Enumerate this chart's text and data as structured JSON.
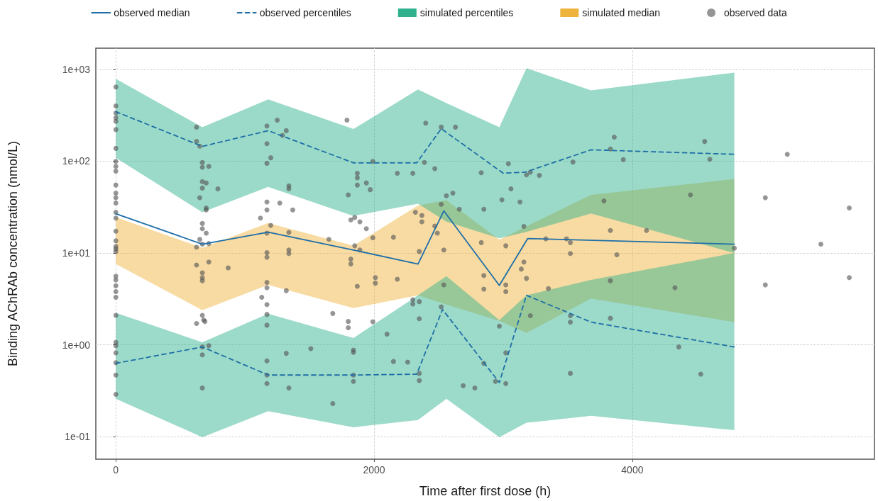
{
  "chart_data": {
    "type": "scatter",
    "xlabel": "Time after first dose (h)",
    "ylabel": "Binding AChRAb concentration (nmol/L)",
    "xlim": [
      -155,
      5875
    ],
    "xticks": [
      0,
      2000,
      4000
    ],
    "ylim": [
      0.057,
      1700
    ],
    "yticks": [
      {
        "value": 0.1,
        "label": "1e-01"
      },
      {
        "value": 1,
        "label": "1e+00"
      },
      {
        "value": 10,
        "label": "1e+01"
      },
      {
        "value": 100,
        "label": "1e+02"
      },
      {
        "value": 1000,
        "label": "1e+03"
      }
    ],
    "log": "y",
    "grid": true,
    "legend": "top",
    "series": [
      {
        "type": "line",
        "name": "observed median",
        "color": "#1f6fa8",
        "line_style": "solid",
        "marker": "none",
        "x": [
          0,
          670,
          1180,
          1840,
          2340,
          2540,
          2970,
          3190,
          4790
        ],
        "values": [
          26.8,
          12.5,
          16.9,
          10.8,
          7.6,
          28.8,
          4.45,
          14.4,
          12.5
        ]
      },
      {
        "type": "line",
        "name": "observed percentiles",
        "color": "#1f6fa8",
        "line_style": "dashed",
        "marker": "none",
        "x": [
          0,
          670,
          1180,
          1840,
          2330,
          2520,
          3000,
          3170,
          3680,
          4790
        ],
        "values": [
          346,
          145,
          215,
          96,
          96,
          226,
          74,
          76,
          133,
          119
        ]
      },
      {
        "type": "line",
        "color": "#1f6fa8",
        "line_style": "dashed",
        "marker": "none",
        "x": [
          0,
          670,
          1180,
          1840,
          2330,
          2530,
          2970,
          3180,
          3680,
          4790
        ],
        "values": [
          0.63,
          0.95,
          0.47,
          0.47,
          0.48,
          2.43,
          0.39,
          3.47,
          1.77,
          0.95
        ]
      },
      {
        "type": "area",
        "name": "simulated percentiles",
        "color": "#2fb18d",
        "x": [
          0,
          670,
          1180,
          1840,
          2340,
          2560,
          2970,
          3180,
          3680,
          4790
        ],
        "values": [
          null,
          null,
          null,
          null,
          null,
          null,
          null,
          null,
          null,
          null
        ],
        "lower": [
          109,
          27.8,
          52.6,
          25.4,
          34.4,
          22,
          14.5,
          17,
          27,
          10
        ],
        "upper": [
          787,
          235,
          472,
          224,
          605,
          430,
          235,
          1030,
          591,
          922
        ]
      },
      {
        "type": "area",
        "color": "#30b28e",
        "x": [
          0,
          670,
          1180,
          1840,
          2340,
          2560,
          2970,
          3180,
          3680,
          4790
        ],
        "values": [
          null,
          null,
          null,
          null,
          null,
          null,
          null,
          null,
          null,
          null
        ],
        "lower": [
          0.259,
          0.099,
          0.19,
          0.127,
          0.152,
          0.259,
          0.099,
          0.142,
          0.169,
          0.118
        ],
        "upper": [
          2.23,
          1.07,
          2.18,
          1.19,
          3.47,
          5.6,
          1.86,
          3.47,
          5.1,
          10
        ]
      },
      {
        "type": "area",
        "name": "simulated median",
        "color": "#eeb33c",
        "x": [
          0,
          670,
          1180,
          1840,
          2340,
          2560,
          2970,
          3180,
          3680,
          4790
        ],
        "values": [
          null,
          null,
          null,
          null,
          null,
          null,
          null,
          null,
          null,
          null
        ],
        "lower": [
          7.6,
          2.39,
          4.5,
          2.52,
          3.47,
          2.75,
          1.83,
          1.35,
          3.2,
          1.77
        ],
        "upper": [
          24.6,
          11.4,
          21.2,
          12,
          33,
          37.6,
          14,
          19.5,
          43,
          64
        ]
      },
      {
        "name": "observed data",
        "color": "#555555",
        "marker": "circle",
        "x": [
          0,
          0,
          0,
          0,
          0,
          0,
          0,
          0,
          0,
          0,
          0,
          0,
          0,
          0,
          0,
          0,
          0,
          0,
          0,
          0,
          0,
          0,
          0,
          0,
          0,
          0,
          0,
          0,
          0,
          0,
          0,
          0,
          0,
          625,
          625,
          650,
          670,
          670,
          720,
          670,
          700,
          670,
          790,
          650,
          700,
          700,
          670,
          670,
          700,
          650,
          670,
          720,
          625,
          625,
          720,
          870,
          670,
          670,
          670,
          670,
          680,
          625,
          690,
          670,
          720,
          670,
          670,
          1250,
          1170,
          1320,
          1290,
          1170,
          1200,
          1170,
          1340,
          1340,
          1170,
          1270,
          1170,
          1370,
          1120,
          1170,
          1340,
          1200,
          1170,
          1170,
          1340,
          1340,
          1170,
          1170,
          1130,
          1320,
          1170,
          1170,
          1170,
          1320,
          1170,
          1170,
          1170,
          1340,
          1510,
          1680,
          1680,
          1650,
          1790,
          1870,
          1870,
          1870,
          1940,
          1970,
          1800,
          1820,
          1850,
          1890,
          1940,
          1990,
          1990,
          1850,
          1890,
          1820,
          1820,
          1870,
          2010,
          2010,
          1800,
          1800,
          1990,
          1840,
          1840,
          1840,
          1840,
          2100,
          2400,
          2520,
          2630,
          2390,
          2470,
          2180,
          2300,
          2560,
          2610,
          2660,
          2520,
          2320,
          2370,
          2370,
          2470,
          2490,
          2150,
          2830,
          3040,
          3210,
          3180,
          3280,
          3060,
          2990,
          3130,
          2850,
          3160,
          2830,
          3020,
          3540,
          3830,
          3860,
          3930,
          3780,
          3830,
          3330,
          3490,
          3520,
          2540,
          2350,
          3520,
          3880,
          2180,
          2540,
          2850,
          2850,
          3020,
          3020,
          3160,
          3140,
          3180,
          3350,
          3830,
          2300,
          2350,
          2300,
          2350,
          2520,
          2970,
          3210,
          3520,
          3520,
          3830,
          3020,
          2150,
          2260,
          2350,
          2350,
          2850,
          2940,
          3020,
          2690,
          2780,
          3520,
          4560,
          4600,
          4450,
          4110,
          4790,
          5200,
          5030,
          5680,
          5460,
          4330,
          4360,
          4530,
          5030,
          5680
        ],
        "values": [
          643,
          400,
          335,
          297,
          272,
          221,
          138,
          99.5,
          88,
          78,
          55,
          45,
          40,
          35,
          27.8,
          24,
          17.3,
          13.6,
          11.1,
          11.8,
          10.4,
          5.6,
          5.1,
          4.4,
          3.8,
          3.3,
          2.1,
          1.07,
          0.98,
          0.82,
          0.64,
          0.47,
          0.29,
          235,
          164,
          146,
          97,
          86,
          88,
          60,
          58,
          51,
          50,
          40,
          31,
          29.5,
          21,
          18.4,
          16.5,
          14.1,
          12.5,
          12.7,
          11.6,
          7.4,
          8,
          6.9,
          6.1,
          5.4,
          5,
          2.1,
          1.87,
          1.71,
          1.8,
          0.95,
          0.98,
          0.78,
          0.34,
          280,
          242,
          215,
          191,
          155,
          109,
          95,
          54,
          50,
          36,
          35,
          29.5,
          29.5,
          24,
          16.5,
          16.8,
          20,
          10.1,
          9,
          10.8,
          9.9,
          4.8,
          4.2,
          3.3,
          3.9,
          2.75,
          2.15,
          1.64,
          0.81,
          0.67,
          0.47,
          0.38,
          0.34,
          0.91,
          2.2,
          0.23,
          14.1,
          280,
          74,
          66,
          55,
          58,
          49,
          43,
          23,
          24.4,
          21.9,
          18.4,
          99.5,
          14.7,
          12,
          10.8,
          8.6,
          7.6,
          4.35,
          5.4,
          4.7,
          1.8,
          1.54,
          1.79,
          0.88,
          0.83,
          0.47,
          0.4,
          1.31,
          260,
          235,
          235,
          97,
          83,
          74,
          74,
          42,
          45,
          30,
          34,
          27.8,
          25.7,
          21.9,
          19.7,
          16.5,
          14.9,
          75,
          94,
          76,
          71,
          70,
          50,
          38,
          36,
          30,
          19.5,
          13,
          12,
          98,
          136,
          183,
          104,
          37,
          17.6,
          14.3,
          14.3,
          13,
          10.8,
          10.4,
          9.9,
          9.6,
          5.2,
          4.5,
          5.7,
          4.05,
          4.5,
          3.8,
          8,
          6.7,
          5.3,
          4.1,
          5,
          3.1,
          2.96,
          2.79,
          1.93,
          2.6,
          1.6,
          2.08,
          2.08,
          1.77,
          1.95,
          0.82,
          0.66,
          0.65,
          0.49,
          0.41,
          0.63,
          0.4,
          0.38,
          0.36,
          0.34,
          0.49,
          164,
          105,
          43,
          17.6,
          11.3,
          119,
          40,
          31,
          12.5,
          4.2,
          0.95,
          0.48,
          4.5,
          5.4
        ]
      }
    ]
  }
}
